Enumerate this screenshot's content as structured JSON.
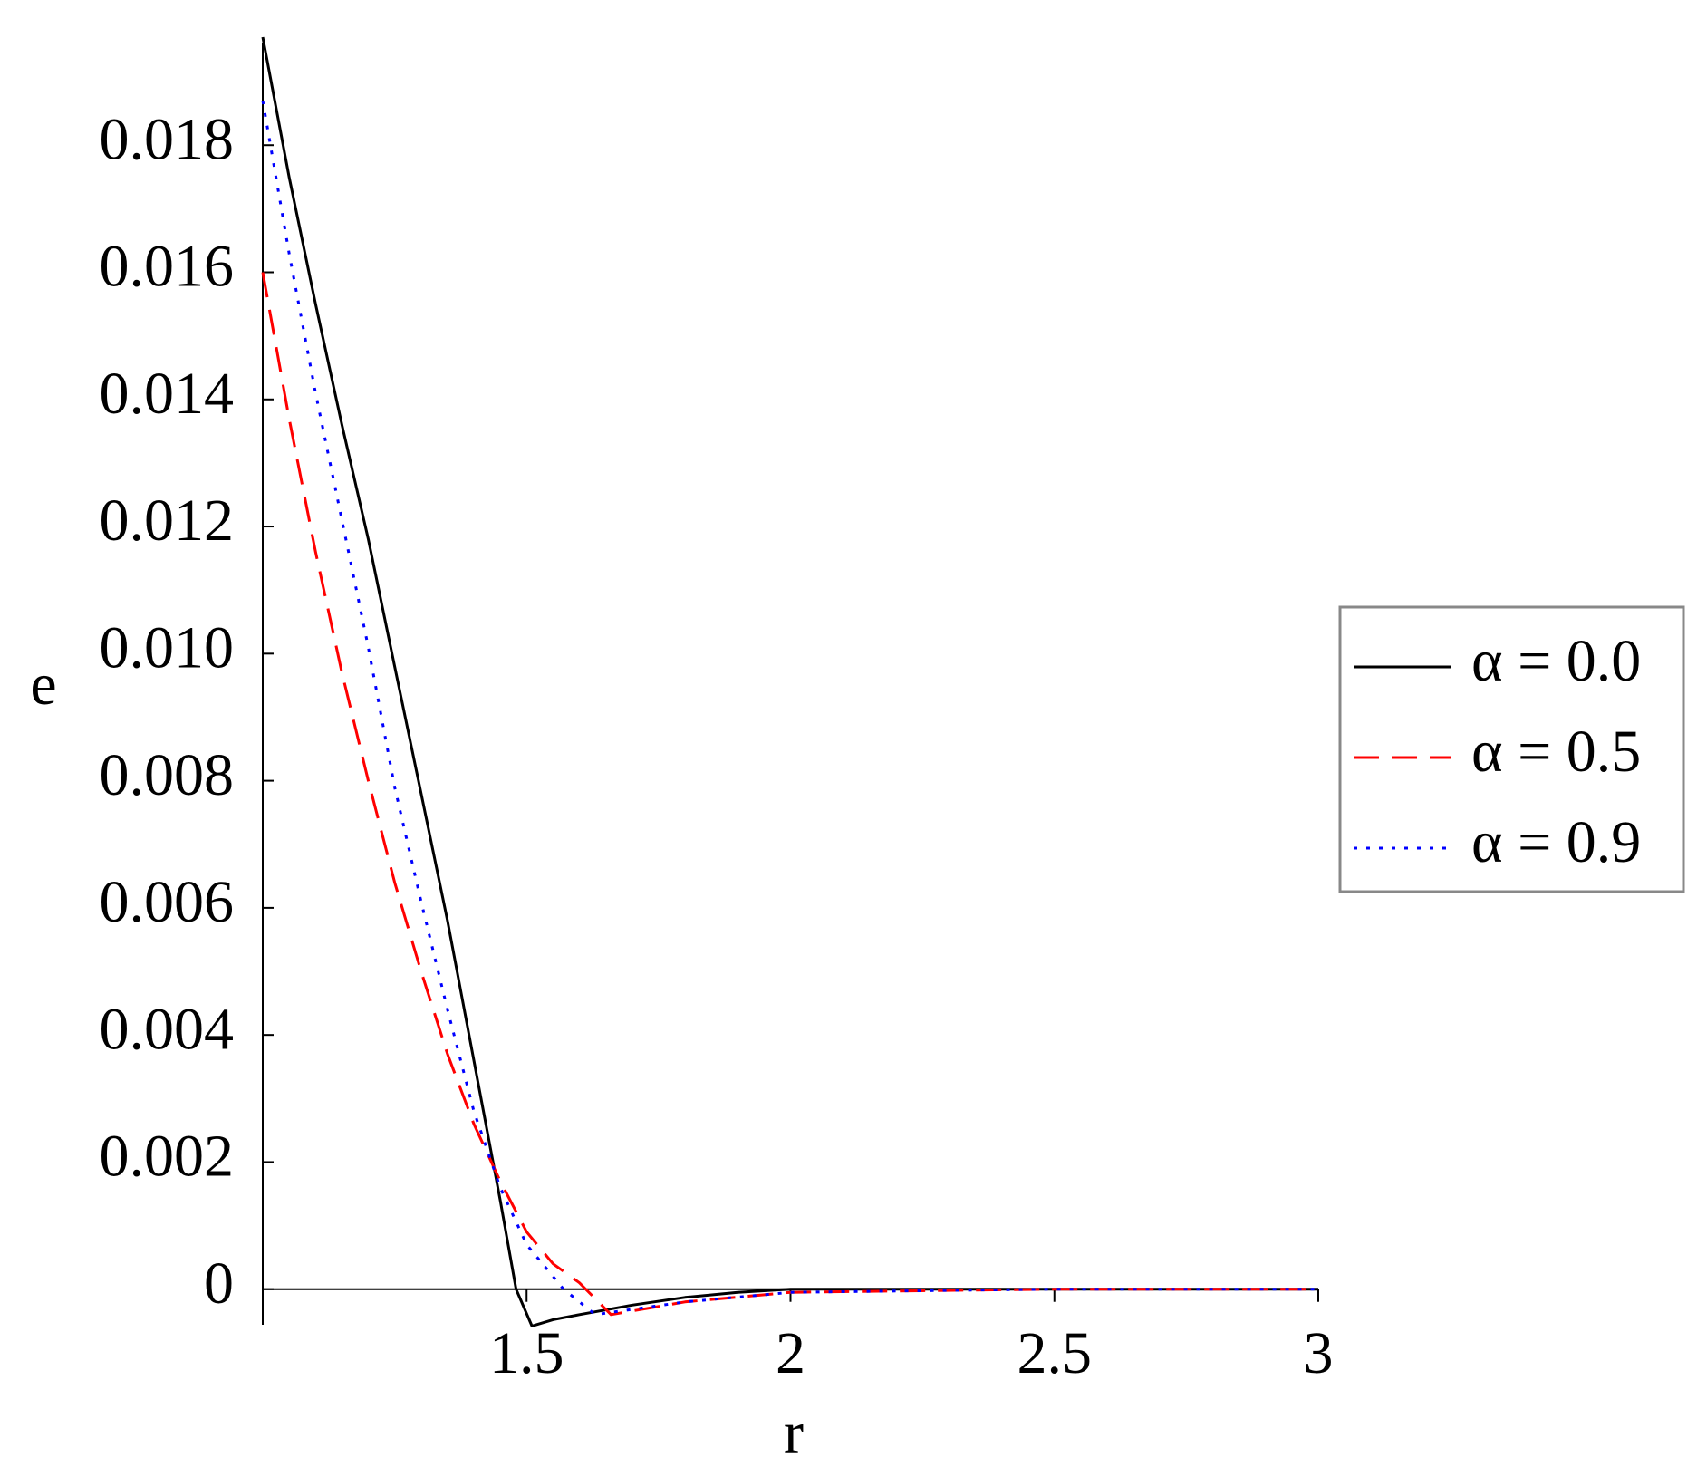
{
  "chart_data": {
    "type": "line",
    "x_label": "r",
    "y_label": "e",
    "xlim": [
      1,
      3
    ],
    "ylim": [
      -0.00056,
      0.0196
    ],
    "xticks": [
      1.5,
      2,
      2.5,
      3
    ],
    "yticks": [
      0,
      0.002,
      0.004,
      0.006,
      0.008,
      {
        "value": 0.01,
        "label": "0.010"
      },
      0.012,
      0.014,
      0.016,
      0.018
    ],
    "legend": "right",
    "series": [
      {
        "name": "α = 0.0",
        "color": "#000000",
        "dash": "solid",
        "x": [
          1,
          1.05,
          1.1,
          1.15,
          1.2,
          1.25,
          1.3,
          1.35,
          1.4,
          1.45,
          1.48,
          1.51,
          1.55,
          1.6,
          1.7,
          1.8,
          1.9,
          2,
          2.5,
          3
        ],
        "values": [
          0.0197,
          0.0175,
          0.0155,
          0.0136,
          0.0118,
          0.0098,
          0.0078,
          0.0058,
          0.0036,
          0.0014,
          0,
          -0.00058,
          -0.00048,
          -0.0004,
          -0.00025,
          -0.00013,
          -5e-05,
          0,
          0,
          0
        ]
      },
      {
        "name": "α = 0.5",
        "color": "#ff0000",
        "dash": "dashed",
        "x": [
          1,
          1.05,
          1.1,
          1.15,
          1.2,
          1.25,
          1.3,
          1.35,
          1.4,
          1.45,
          1.5,
          1.55,
          1.6,
          1.66,
          1.8,
          2,
          2.5,
          3
        ],
        "values": [
          0.016,
          0.0137,
          0.0116,
          0.0097,
          0.008,
          0.0064,
          0.005,
          0.0037,
          0.0026,
          0.0017,
          0.0009,
          0.0004,
          0.0001,
          -0.0004,
          -0.0002,
          -5e-05,
          0,
          0
        ]
      },
      {
        "name": "α = 0.9",
        "color": "#0000ff",
        "dash": "dotted",
        "x": [
          1,
          1.05,
          1.1,
          1.15,
          1.2,
          1.25,
          1.3,
          1.35,
          1.4,
          1.45,
          1.5,
          1.57,
          1.63,
          1.8,
          2,
          2.5,
          3
        ],
        "values": [
          0.0187,
          0.0163,
          0.0141,
          0.0121,
          0.0101,
          0.0079,
          0.0061,
          0.0044,
          0.0028,
          0.0016,
          0.0007,
          0,
          -0.0004,
          -0.0002,
          -5e-05,
          0,
          0
        ]
      }
    ]
  }
}
